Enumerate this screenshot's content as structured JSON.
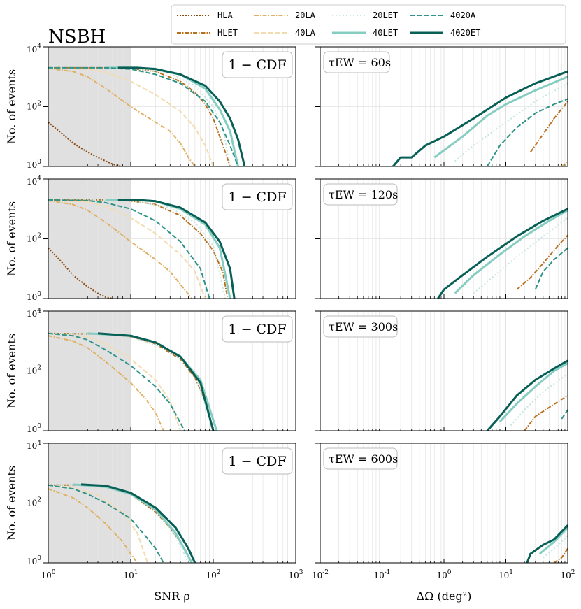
{
  "figure": {
    "title": "NSBH",
    "left_xlabel": "SNR ρ",
    "right_xlabel": "ΔΩ (deg²)",
    "ylabel": "No. of events",
    "cdf_label": "1 − CDF"
  },
  "legend": [
    {
      "name": "HLA",
      "color": "#8c4a0f",
      "dash": "2,2",
      "width": 2
    },
    {
      "name": "HLET",
      "color": "#b8701e",
      "dash": "6,2,1.5,2",
      "width": 2
    },
    {
      "name": "20LA",
      "color": "#e0b062",
      "dash": "6,2,1.5,2",
      "width": 2
    },
    {
      "name": "40LA",
      "color": "#f3dbb0",
      "dash": "7,3",
      "width": 2
    },
    {
      "name": "20LET",
      "color": "#c6e6e1",
      "dash": "2,3",
      "width": 2
    },
    {
      "name": "40LET",
      "color": "#86cdc1",
      "dash": "",
      "width": 3
    },
    {
      "name": "4020A",
      "color": "#2e9488",
      "dash": "7,3",
      "width": 2
    },
    {
      "name": "4020ET",
      "color": "#075f56",
      "dash": "",
      "width": 3
    }
  ],
  "ticks": {
    "snr_x": [
      "10^0",
      "10^1",
      "10^2",
      "10^3"
    ],
    "sky_x": [
      "10^-2",
      "10^-1",
      "10^0",
      "10^1",
      "10^2"
    ],
    "y": [
      "10^0",
      "10^2",
      "10^4"
    ]
  },
  "chart_data": [
    {
      "type": "line",
      "panel": "snr",
      "row": 0,
      "xscale": "log",
      "yscale": "log",
      "xlim": [
        1,
        1000
      ],
      "ylim": [
        1,
        10000
      ],
      "shaded_region_x": [
        1,
        10
      ],
      "series": [
        {
          "name": "HLA",
          "x": [
            1,
            1.5,
            2,
            3,
            4,
            5,
            6,
            7,
            8
          ],
          "y": [
            30,
            12,
            6,
            3,
            2,
            1.5,
            1.2,
            1.05,
            1
          ]
        },
        {
          "name": "HLET",
          "x": [
            1,
            5,
            10,
            20,
            40,
            60,
            80,
            100,
            120,
            140,
            160
          ],
          "y": [
            2000,
            2000,
            1900,
            1500,
            700,
            300,
            120,
            40,
            10,
            3,
            1
          ]
        },
        {
          "name": "20LA",
          "x": [
            1,
            2,
            3,
            5,
            10,
            20,
            30,
            40,
            50,
            60
          ],
          "y": [
            1900,
            1500,
            1000,
            400,
            100,
            30,
            15,
            6,
            2,
            1
          ]
        },
        {
          "name": "40LA",
          "x": [
            1,
            3,
            5,
            10,
            20,
            40,
            60,
            80,
            100
          ],
          "y": [
            2000,
            1800,
            1400,
            700,
            250,
            70,
            20,
            5,
            1
          ]
        },
        {
          "name": "20LET",
          "x": [
            1,
            5,
            10,
            30,
            60,
            100,
            130,
            160
          ],
          "y": [
            2000,
            2000,
            1950,
            1300,
            500,
            100,
            20,
            1
          ]
        },
        {
          "name": "40LET",
          "x": [
            5,
            10,
            20,
            40,
            80,
            120,
            160,
            200
          ],
          "y": [
            2000,
            2000,
            1850,
            1200,
            400,
            80,
            15,
            1
          ]
        },
        {
          "name": "4020A",
          "x": [
            1,
            5,
            10,
            20,
            40,
            80,
            120,
            160,
            200
          ],
          "y": [
            2000,
            2000,
            1800,
            1200,
            600,
            150,
            30,
            5,
            1
          ]
        },
        {
          "name": "4020ET",
          "x": [
            7,
            12,
            20,
            40,
            80,
            120,
            160,
            200,
            240
          ],
          "y": [
            2000,
            2000,
            1800,
            1200,
            500,
            150,
            40,
            8,
            1
          ]
        }
      ]
    },
    {
      "type": "line",
      "panel": "sky",
      "row": 0,
      "tau_label": "τEW = 60s",
      "xscale": "log",
      "yscale": "log",
      "xlim": [
        0.01,
        100
      ],
      "ylim": [
        1,
        10000
      ],
      "series": [
        {
          "name": "HLET",
          "x": [
            25,
            40,
            60,
            100
          ],
          "y": [
            3,
            12,
            40,
            150
          ]
        },
        {
          "name": "20LA",
          "x": [
            80,
            100
          ],
          "y": [
            1,
            1.5
          ]
        },
        {
          "name": "20LET",
          "x": [
            1.5,
            3,
            10,
            30,
            100
          ],
          "y": [
            1.5,
            5,
            30,
            150,
            600
          ]
        },
        {
          "name": "40LET",
          "x": [
            0.7,
            2,
            5,
            10,
            30,
            100
          ],
          "y": [
            2,
            10,
            50,
            120,
            350,
            1000
          ]
        },
        {
          "name": "4020A",
          "x": [
            5,
            8,
            15,
            30,
            60,
            100
          ],
          "y": [
            1,
            5,
            20,
            60,
            120,
            180
          ]
        },
        {
          "name": "4020ET",
          "x": [
            0.15,
            0.2,
            0.3,
            0.5,
            1,
            3,
            10,
            30,
            100
          ],
          "y": [
            1,
            2,
            2,
            5,
            10,
            40,
            200,
            600,
            1500
          ]
        }
      ]
    },
    {
      "type": "line",
      "panel": "snr",
      "row": 1,
      "xscale": "log",
      "yscale": "log",
      "xlim": [
        1,
        1000
      ],
      "ylim": [
        1,
        10000
      ],
      "shaded_region_x": [
        1,
        10
      ],
      "series": [
        {
          "name": "HLA",
          "x": [
            1,
            1.5,
            2,
            3,
            4,
            5,
            6
          ],
          "y": [
            50,
            15,
            6,
            2.5,
            1.5,
            1.1,
            1
          ]
        },
        {
          "name": "HLET",
          "x": [
            1,
            5,
            10,
            20,
            40,
            70,
            100,
            130,
            150
          ],
          "y": [
            2000,
            2000,
            1850,
            1400,
            600,
            150,
            40,
            8,
            1
          ]
        },
        {
          "name": "20LA",
          "x": [
            1,
            2,
            3,
            5,
            10,
            20,
            30,
            40,
            55
          ],
          "y": [
            1900,
            1400,
            900,
            350,
            80,
            20,
            8,
            3,
            1
          ]
        },
        {
          "name": "40LA",
          "x": [
            1,
            3,
            5,
            10,
            20,
            40,
            60,
            80
          ],
          "y": [
            2000,
            1700,
            1200,
            500,
            150,
            30,
            8,
            1
          ]
        },
        {
          "name": "20LET",
          "x": [
            1,
            5,
            10,
            30,
            60,
            100,
            140
          ],
          "y": [
            2000,
            2000,
            1900,
            1100,
            350,
            60,
            1
          ]
        },
        {
          "name": "40LET",
          "x": [
            5,
            10,
            20,
            40,
            80,
            120,
            160
          ],
          "y": [
            2000,
            2000,
            1800,
            1000,
            300,
            50,
            1
          ]
        },
        {
          "name": "4020A",
          "x": [
            1,
            3,
            5,
            10,
            20,
            40,
            70,
            90
          ],
          "y": [
            2000,
            1900,
            1600,
            1000,
            400,
            80,
            10,
            1
          ]
        },
        {
          "name": "4020ET",
          "x": [
            7,
            12,
            20,
            40,
            80,
            120,
            160,
            180
          ],
          "y": [
            2000,
            2000,
            1800,
            1100,
            350,
            80,
            10,
            1
          ]
        }
      ]
    },
    {
      "type": "line",
      "panel": "sky",
      "row": 1,
      "tau_label": "τEW = 120s",
      "xscale": "log",
      "yscale": "log",
      "xlim": [
        0.01,
        100
      ],
      "ylim": [
        1,
        10000
      ],
      "series": [
        {
          "name": "HLET",
          "x": [
            15,
            25,
            40,
            70,
            100
          ],
          "y": [
            2,
            5,
            15,
            60,
            130
          ]
        },
        {
          "name": "20LET",
          "x": [
            3,
            6,
            15,
            40,
            100
          ],
          "y": [
            1.5,
            5,
            25,
            120,
            500
          ]
        },
        {
          "name": "40LET",
          "x": [
            1.5,
            3,
            8,
            20,
            50,
            100
          ],
          "y": [
            1.5,
            6,
            30,
            120,
            400,
            900
          ]
        },
        {
          "name": "4020A",
          "x": [
            30,
            40,
            60,
            100
          ],
          "y": [
            2,
            8,
            20,
            50
          ]
        },
        {
          "name": "4020ET",
          "x": [
            0.8,
            1,
            2,
            5,
            15,
            40,
            100
          ],
          "y": [
            1,
            2,
            6,
            25,
            120,
            400,
            1000
          ]
        }
      ]
    },
    {
      "type": "line",
      "panel": "snr",
      "row": 2,
      "xscale": "log",
      "yscale": "log",
      "xlim": [
        1,
        1000
      ],
      "ylim": [
        1,
        10000
      ],
      "shaded_region_x": [
        1,
        10
      ],
      "series": [
        {
          "name": "HLET",
          "x": [
            1,
            5,
            10,
            20,
            40,
            60,
            80,
            100
          ],
          "y": [
            1800,
            1700,
            1400,
            800,
            250,
            60,
            10,
            1
          ]
        },
        {
          "name": "20LA",
          "x": [
            1,
            2,
            3,
            5,
            10,
            15,
            20,
            25
          ],
          "y": [
            1500,
            1000,
            600,
            200,
            40,
            12,
            4,
            1
          ]
        },
        {
          "name": "40LA",
          "x": [
            1,
            3,
            5,
            10,
            20,
            30,
            40
          ],
          "y": [
            1800,
            1400,
            800,
            250,
            50,
            10,
            1
          ]
        },
        {
          "name": "20LET",
          "x": [
            1,
            5,
            10,
            30,
            60,
            100
          ],
          "y": [
            1800,
            1700,
            1400,
            500,
            80,
            1
          ]
        },
        {
          "name": "40LET",
          "x": [
            3,
            10,
            20,
            40,
            70,
            110
          ],
          "y": [
            1800,
            1500,
            900,
            300,
            50,
            1
          ]
        },
        {
          "name": "4020A",
          "x": [
            1,
            2,
            3,
            5,
            10,
            20,
            30,
            45
          ],
          "y": [
            1800,
            1500,
            1100,
            500,
            150,
            30,
            8,
            1
          ]
        },
        {
          "name": "4020ET",
          "x": [
            4,
            10,
            20,
            40,
            70,
            100
          ],
          "y": [
            1800,
            1500,
            900,
            300,
            40,
            1
          ]
        }
      ]
    },
    {
      "type": "line",
      "panel": "sky",
      "row": 2,
      "tau_label": "τEW = 300s",
      "xscale": "log",
      "yscale": "log",
      "xlim": [
        0.01,
        100
      ],
      "ylim": [
        1,
        10000
      ],
      "series": [
        {
          "name": "HLET",
          "x": [
            20,
            30,
            50,
            100
          ],
          "y": [
            1,
            3,
            6,
            15
          ]
        },
        {
          "name": "20LET",
          "x": [
            12,
            20,
            40,
            100
          ],
          "y": [
            1.5,
            5,
            20,
            80
          ]
        },
        {
          "name": "40LET",
          "x": [
            8,
            15,
            30,
            60,
            100
          ],
          "y": [
            2,
            8,
            30,
            100,
            180
          ]
        },
        {
          "name": "4020A",
          "x": [
            80,
            100
          ],
          "y": [
            2.5,
            5
          ]
        },
        {
          "name": "4020ET",
          "x": [
            5,
            8,
            15,
            30,
            60,
            100
          ],
          "y": [
            1,
            3,
            15,
            50,
            120,
            220
          ]
        }
      ]
    },
    {
      "type": "line",
      "panel": "snr",
      "row": 3,
      "xscale": "log",
      "yscale": "log",
      "xlim": [
        1,
        1000
      ],
      "ylim": [
        1,
        10000
      ],
      "shaded_region_x": [
        1,
        10
      ],
      "series": [
        {
          "name": "HLET",
          "x": [
            1,
            3,
            5,
            10,
            20,
            30,
            45,
            55
          ],
          "y": [
            400,
            400,
            350,
            200,
            50,
            15,
            3,
            1
          ]
        },
        {
          "name": "20LA",
          "x": [
            1,
            2,
            3,
            5,
            8,
            10,
            12
          ],
          "y": [
            300,
            150,
            70,
            20,
            5,
            2,
            1
          ]
        },
        {
          "name": "40LA",
          "x": [
            1,
            2,
            4,
            8,
            12,
            16
          ],
          "y": [
            400,
            330,
            180,
            50,
            10,
            1
          ]
        },
        {
          "name": "20LET",
          "x": [
            1,
            3,
            5,
            10,
            20,
            35,
            50
          ],
          "y": [
            400,
            400,
            350,
            200,
            60,
            8,
            1
          ]
        },
        {
          "name": "40LET",
          "x": [
            2,
            5,
            10,
            20,
            35,
            55
          ],
          "y": [
            420,
            350,
            200,
            60,
            10,
            1
          ]
        },
        {
          "name": "4020A",
          "x": [
            1,
            2,
            3,
            5,
            10,
            15,
            20,
            25
          ],
          "y": [
            400,
            300,
            200,
            100,
            30,
            8,
            3,
            1
          ]
        },
        {
          "name": "4020ET",
          "x": [
            2.5,
            5,
            10,
            20,
            35,
            50,
            60
          ],
          "y": [
            420,
            380,
            220,
            70,
            15,
            3,
            1
          ]
        }
      ]
    },
    {
      "type": "line",
      "panel": "sky",
      "row": 3,
      "tau_label": "τEW = 600s",
      "xscale": "log",
      "yscale": "log",
      "xlim": [
        0.01,
        100
      ],
      "ylim": [
        1,
        10000
      ],
      "series": [
        {
          "name": "HLET",
          "x": [
            60,
            80,
            100
          ],
          "y": [
            1,
            1.5,
            3
          ]
        },
        {
          "name": "20LET",
          "x": [
            40,
            60,
            100
          ],
          "y": [
            1.5,
            3,
            8
          ]
        },
        {
          "name": "40LET",
          "x": [
            35,
            60,
            100
          ],
          "y": [
            2,
            5,
            15
          ]
        },
        {
          "name": "4020ET",
          "x": [
            22,
            25,
            40,
            60,
            100
          ],
          "y": [
            1,
            2,
            4,
            6,
            18
          ]
        }
      ]
    }
  ]
}
